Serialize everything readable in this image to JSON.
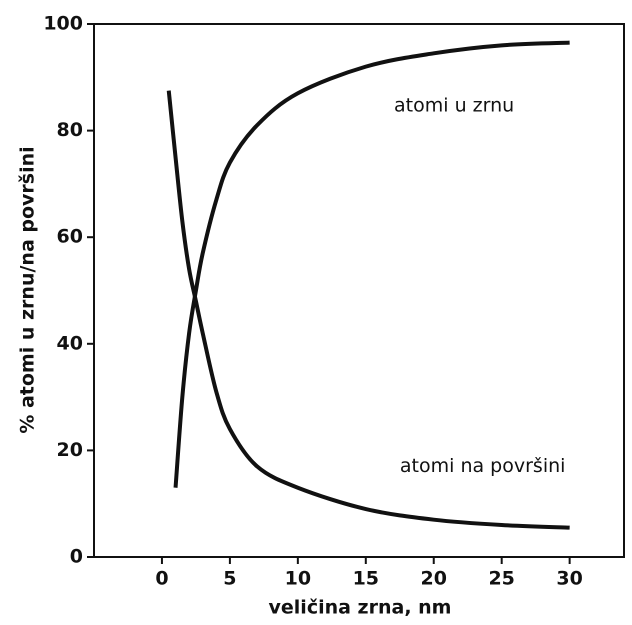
{
  "chart_data": {
    "type": "line",
    "x_label": "veličina zrna, nm",
    "y_label": "% atomi u zrnu/na površini",
    "xlim": [
      -5,
      34
    ],
    "xticks": [
      0,
      5,
      10,
      15,
      20,
      25,
      30
    ],
    "ylim": [
      0,
      100
    ],
    "yticks": [
      0,
      20,
      40,
      60,
      80,
      100
    ],
    "series": [
      {
        "name": "atomi u zrnu",
        "color": "#111111",
        "x": [
          1,
          1.5,
          2,
          2.5,
          3,
          4,
          5,
          7,
          10,
          15,
          20,
          25,
          30
        ],
        "values": [
          13,
          30,
          42,
          50,
          57,
          67,
          74,
          81,
          87,
          92,
          94.5,
          96,
          96.5
        ]
      },
      {
        "name": "atomi na površini",
        "color": "#111111",
        "x": [
          0.5,
          1,
          1.5,
          2,
          2.5,
          3,
          4,
          5,
          7,
          10,
          15,
          20,
          25,
          30
        ],
        "values": [
          87.5,
          75,
          63,
          54,
          48,
          42,
          31,
          24,
          17,
          13,
          9,
          7,
          6,
          5.5
        ]
      }
    ]
  }
}
